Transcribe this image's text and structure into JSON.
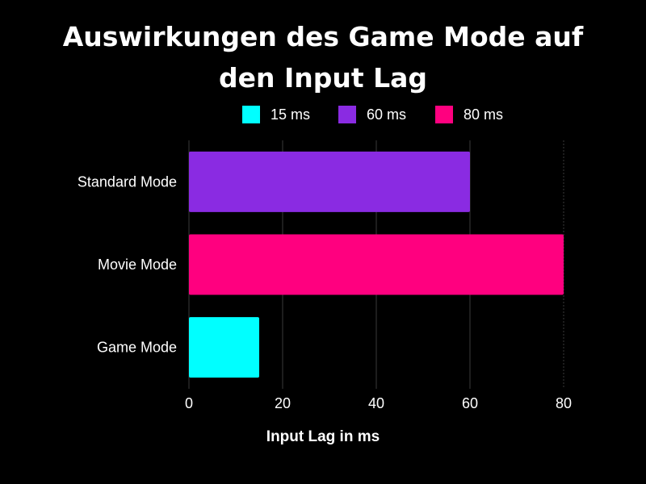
{
  "chart_data": {
    "type": "bar",
    "orientation": "horizontal",
    "title_lines": [
      "Auswirkungen des Game Mode auf",
      "den Input Lag"
    ],
    "categories": [
      "Standard Mode",
      "Movie Mode",
      "Game Mode"
    ],
    "values": [
      60,
      80,
      15
    ],
    "bar_colors": [
      "#8a2be2",
      "#ff007f",
      "#00ffff"
    ],
    "legend": [
      {
        "label": "15 ms",
        "color": "#00ffff"
      },
      {
        "label": "60 ms",
        "color": "#8a2be2"
      },
      {
        "label": "80 ms",
        "color": "#ff007f"
      }
    ],
    "legend_position": "top",
    "xlabel": "Input Lag in ms",
    "ylabel": "",
    "xlim": [
      0,
      80
    ],
    "x_ticks": [
      0,
      20,
      40,
      60,
      80
    ],
    "grid": true
  }
}
